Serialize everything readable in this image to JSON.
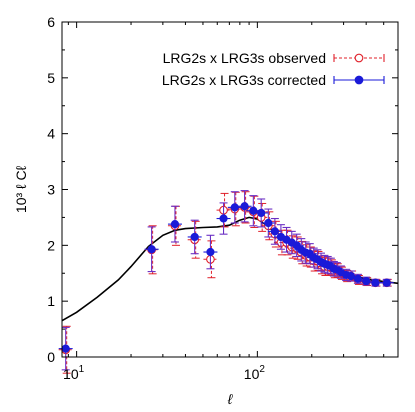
{
  "chart_data": {
    "type": "scatter",
    "title": "",
    "xlabel": "ℓ",
    "ylabel": "10³ ℓ Cℓ",
    "xscale": "log",
    "xlim": [
      8.3,
      600
    ],
    "ylim": [
      0,
      6
    ],
    "yticks": [
      0,
      1,
      2,
      3,
      4,
      5,
      6
    ],
    "xticks": [
      {
        "value": 10,
        "base": "10",
        "exp": "1"
      },
      {
        "value": 100,
        "base": "10",
        "exp": "2"
      }
    ],
    "grid": false,
    "legend_position": "top-right",
    "colors": {
      "observed": "#e0202a",
      "corrected": "#1a1ad8",
      "corrected_bar": "#6b2fc4",
      "model": "#000000"
    },
    "series": [
      {
        "name": "LRG2s x LRG3s observed",
        "marker": "open-circle",
        "x": [
          8.7,
          26,
          35,
          45,
          55,
          65,
          75,
          85,
          95,
          105,
          115,
          125,
          135,
          145,
          155,
          165,
          175,
          185,
          195,
          205,
          215,
          225,
          235,
          245,
          255,
          265,
          275,
          290,
          310,
          330,
          360,
          400,
          450,
          520
        ],
        "y": [
          0.13,
          1.92,
          2.35,
          2.1,
          1.75,
          2.63,
          2.65,
          2.68,
          2.6,
          2.5,
          2.35,
          2.2,
          2.05,
          2.05,
          1.97,
          1.95,
          1.87,
          1.82,
          1.79,
          1.72,
          1.72,
          1.65,
          1.62,
          1.62,
          1.6,
          1.55,
          1.55,
          1.5,
          1.45,
          1.45,
          1.38,
          1.35,
          1.33,
          1.33
        ],
        "err": [
          0.42,
          0.43,
          0.35,
          0.33,
          0.33,
          0.3,
          0.3,
          0.28,
          0.28,
          0.25,
          0.25,
          0.23,
          0.22,
          0.22,
          0.2,
          0.2,
          0.2,
          0.19,
          0.18,
          0.18,
          0.17,
          0.16,
          0.16,
          0.15,
          0.14,
          0.13,
          0.12,
          0.11,
          0.1,
          0.09,
          0.08,
          0.07,
          0.06,
          0.06
        ]
      },
      {
        "name": "LRG2s x LRG3s corrected",
        "marker": "filled-circle",
        "x": [
          8.7,
          26,
          35,
          45,
          55,
          65,
          75,
          85,
          95,
          105,
          115,
          125,
          135,
          145,
          155,
          165,
          175,
          185,
          195,
          205,
          215,
          225,
          235,
          245,
          255,
          265,
          275,
          290,
          310,
          330,
          360,
          400,
          450,
          520
        ],
        "y": [
          0.15,
          1.93,
          2.38,
          2.15,
          1.88,
          2.48,
          2.68,
          2.7,
          2.62,
          2.58,
          2.4,
          2.25,
          2.15,
          2.1,
          2.05,
          2.0,
          1.92,
          1.87,
          1.85,
          1.78,
          1.75,
          1.7,
          1.67,
          1.65,
          1.63,
          1.58,
          1.57,
          1.52,
          1.47,
          1.45,
          1.4,
          1.36,
          1.33,
          1.33
        ],
        "err": [
          0.38,
          0.4,
          0.32,
          0.3,
          0.3,
          0.28,
          0.28,
          0.28,
          0.27,
          0.25,
          0.25,
          0.23,
          0.22,
          0.22,
          0.2,
          0.2,
          0.2,
          0.19,
          0.18,
          0.17,
          0.17,
          0.16,
          0.15,
          0.15,
          0.14,
          0.13,
          0.12,
          0.11,
          0.1,
          0.09,
          0.08,
          0.07,
          0.06,
          0.06
        ]
      }
    ],
    "model_curve": {
      "x": [
        8.3,
        10,
        13,
        17,
        20,
        25,
        30,
        35,
        40,
        50,
        60,
        70,
        80,
        90,
        100,
        110,
        120,
        140,
        160,
        200,
        250,
        300,
        400,
        500,
        600
      ],
      "y": [
        0.65,
        0.8,
        1.07,
        1.38,
        1.62,
        1.98,
        2.18,
        2.27,
        2.3,
        2.32,
        2.33,
        2.36,
        2.45,
        2.5,
        2.47,
        2.38,
        2.28,
        2.1,
        1.95,
        1.75,
        1.6,
        1.5,
        1.4,
        1.35,
        1.32
      ]
    }
  }
}
